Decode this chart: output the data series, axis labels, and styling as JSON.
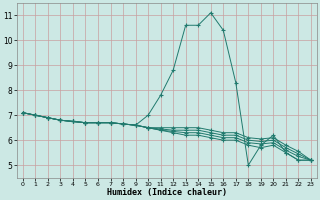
{
  "title": "",
  "xlabel": "Humidex (Indice chaleur)",
  "ylabel": "",
  "background_color": "#cce8e4",
  "grid_color": "#b8d8d4",
  "line_color": "#217a6e",
  "xlim": [
    -0.5,
    23.5
  ],
  "ylim": [
    4.5,
    11.5
  ],
  "xticks": [
    0,
    1,
    2,
    3,
    4,
    5,
    6,
    7,
    8,
    9,
    10,
    11,
    12,
    13,
    14,
    15,
    16,
    17,
    18,
    19,
    20,
    21,
    22,
    23
  ],
  "yticks": [
    5,
    6,
    7,
    8,
    9,
    10,
    11
  ],
  "curves": [
    [
      7.1,
      7.0,
      6.9,
      6.8,
      6.75,
      6.7,
      6.7,
      6.7,
      6.65,
      6.6,
      7.0,
      7.8,
      8.8,
      10.6,
      10.6,
      11.1,
      10.4,
      8.3,
      5.0,
      5.8,
      6.2,
      5.5,
      5.2,
      5.2
    ],
    [
      7.1,
      7.0,
      6.9,
      6.8,
      6.75,
      6.7,
      6.7,
      6.7,
      6.65,
      6.6,
      6.5,
      6.4,
      6.3,
      6.2,
      6.2,
      6.1,
      6.0,
      6.0,
      5.8,
      5.7,
      5.8,
      5.5,
      5.2,
      5.2
    ],
    [
      7.1,
      7.0,
      6.9,
      6.8,
      6.75,
      6.7,
      6.7,
      6.7,
      6.65,
      6.6,
      6.5,
      6.4,
      6.35,
      6.3,
      6.3,
      6.2,
      6.1,
      6.1,
      5.9,
      5.85,
      5.9,
      5.6,
      5.35,
      5.2
    ],
    [
      7.1,
      7.0,
      6.9,
      6.8,
      6.75,
      6.7,
      6.7,
      6.7,
      6.65,
      6.6,
      6.5,
      6.45,
      6.4,
      6.4,
      6.4,
      6.3,
      6.2,
      6.2,
      6.0,
      5.95,
      6.0,
      5.7,
      5.45,
      5.2
    ],
    [
      7.1,
      7.0,
      6.9,
      6.8,
      6.75,
      6.7,
      6.7,
      6.7,
      6.65,
      6.6,
      6.5,
      6.5,
      6.5,
      6.5,
      6.5,
      6.4,
      6.3,
      6.3,
      6.1,
      6.05,
      6.1,
      5.8,
      5.55,
      5.2
    ]
  ]
}
